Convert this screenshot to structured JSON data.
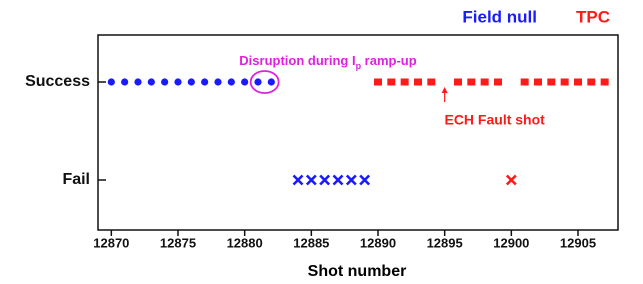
{
  "chart_data": {
    "type": "scatter",
    "x_label": "Shot number",
    "y_categories": [
      "Fail",
      "Success"
    ],
    "xlim": [
      12869,
      12908
    ],
    "xticks": [
      12870,
      12875,
      12880,
      12885,
      12890,
      12895,
      12900,
      12905
    ],
    "series": [
      {
        "name": "Field null",
        "color": "#1a1aff",
        "success_marker": "circle",
        "fail_marker": "x",
        "success": [
          12870,
          12871,
          12872,
          12873,
          12874,
          12875,
          12876,
          12877,
          12878,
          12879,
          12880,
          12881,
          12882
        ],
        "fail": [
          12884,
          12885,
          12886,
          12887,
          12888,
          12889
        ]
      },
      {
        "name": "TPC",
        "color": "#ff1a1a",
        "success_marker": "square",
        "fail_marker": "x",
        "success": [
          12890,
          12891,
          12892,
          12893,
          12894,
          12896,
          12897,
          12898,
          12899,
          12901,
          12902,
          12903,
          12904,
          12905,
          12906,
          12907
        ],
        "fail": [
          12900
        ]
      }
    ],
    "annotations": [
      {
        "parts": [
          "Disruption during I",
          "p",
          " ramp-up"
        ],
        "color": "#e020e0",
        "x_from": 12881,
        "x_to": 12882,
        "category": "Success"
      },
      {
        "text": "ECH Fault shot",
        "color": "#ff1a1a",
        "x": 12895,
        "category": "Success"
      }
    ]
  }
}
